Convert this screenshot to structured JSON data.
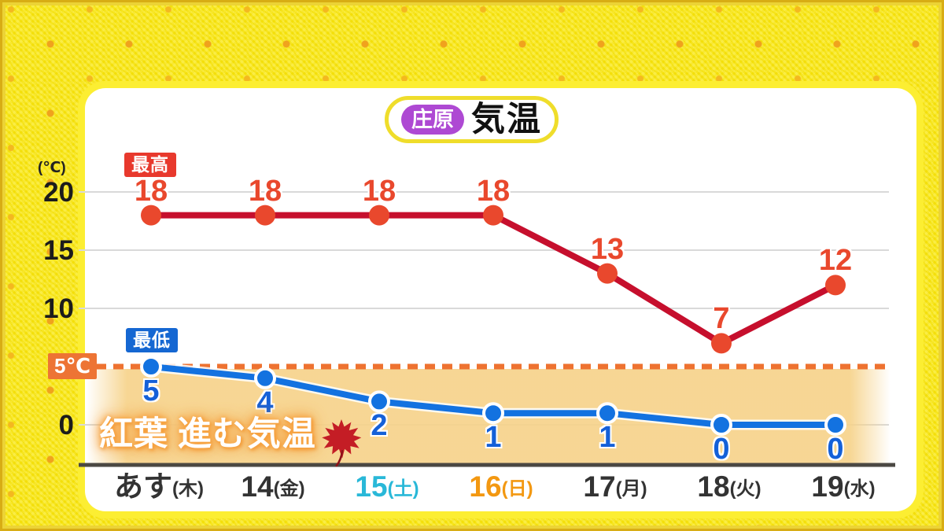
{
  "title": {
    "location": "庄原",
    "label": "気温"
  },
  "y_axis": {
    "unit": "(℃)",
    "ticks": [
      20,
      15,
      10,
      0
    ]
  },
  "threshold": {
    "label": "5℃",
    "value": 5
  },
  "legend": {
    "max_label": "最高",
    "min_label": "最低"
  },
  "annotation": {
    "text": "紅葉 進む気温",
    "icon": "maple-leaf-icon"
  },
  "chart_data": {
    "type": "line",
    "categories": [
      {
        "label": "あす",
        "suffix": "(木)",
        "color": "#333333"
      },
      {
        "label": "14",
        "suffix": "(金)",
        "color": "#333333"
      },
      {
        "label": "15",
        "suffix": "(土)",
        "color": "#29b8d8"
      },
      {
        "label": "16",
        "suffix": "(日)",
        "color": "#f39811"
      },
      {
        "label": "17",
        "suffix": "(月)",
        "color": "#333333"
      },
      {
        "label": "18",
        "suffix": "(火)",
        "color": "#333333"
      },
      {
        "label": "19",
        "suffix": "(水)",
        "color": "#333333"
      }
    ],
    "series": [
      {
        "name": "最高",
        "values": [
          18,
          18,
          18,
          18,
          13,
          7,
          12
        ],
        "line_color": "#c60f2d",
        "point_color": "#e9482d",
        "label_color": "#e9482d",
        "label_position": "above"
      },
      {
        "name": "最低",
        "values": [
          5,
          4,
          2,
          1,
          1,
          0,
          0
        ],
        "line_color": "#1372e0",
        "point_color": "#1372e0",
        "label_color": "#1460d8",
        "label_position": "below"
      }
    ],
    "ylim": [
      -3.4,
      22.2
    ],
    "grid": true,
    "threshold_line": {
      "value": 5,
      "color": "#ee7230",
      "style": "dashed"
    },
    "shaded_band": {
      "from_value": 5,
      "to_value": -3.4,
      "color": "#f6d289"
    }
  },
  "colors": {
    "frame_yellow": "#f8e60a",
    "frame_dot_orange": "#f0a21d",
    "panel_white": "#ffffff",
    "title_purple": "#ae49d3",
    "pill_border_yellow": "#efdd2b",
    "max_red_box": "#e8392d",
    "max_line_red": "#c60f2d",
    "min_blue": "#1372e0",
    "threshold_orange": "#ed7434",
    "band_orange": "#f6d289",
    "axis_dark": "#4b4843",
    "grid_gray": "#d9d9d9"
  }
}
